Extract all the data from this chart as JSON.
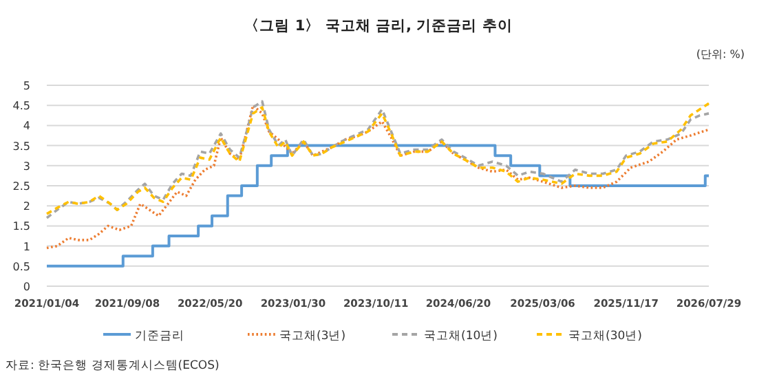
{
  "chart_data": {
    "type": "line",
    "title": "〈그림 1〉 국고채 금리, 기준금리 추이",
    "annotations": [
      "(단위: %)",
      "자료: 한국은행 경제통계시스템(ECOS)"
    ],
    "xlim": [
      "2021-01-04",
      "2026-07-29"
    ],
    "xticks": [
      {
        "value": "2021-01-04",
        "label": "2021/01/04"
      },
      {
        "value": "2021-09-08",
        "label": "2021/09/08"
      },
      {
        "value": "2022-05-20",
        "label": "2022/05/20"
      },
      {
        "value": "2023-01-30",
        "label": "2023/01/30"
      },
      {
        "value": "2023-10-11",
        "label": "2023/10/11"
      },
      {
        "value": "2024-06-20",
        "label": "2024/06/20"
      },
      {
        "value": "2025-03-06",
        "label": "2025/03/06"
      },
      {
        "value": "2025-11-17",
        "label": "2025/11/17"
      },
      {
        "value": "2026-07-29",
        "label": "2026/07/29"
      }
    ],
    "ylim": [
      0,
      5
    ],
    "yticks": [
      0,
      0.5,
      1,
      1.5,
      2,
      2.5,
      3,
      3.5,
      4,
      4.5,
      5
    ],
    "grid": "y",
    "legend": "bottom",
    "series": [
      {
        "name": "기준금리",
        "type": "step",
        "color": "#5b9bd5",
        "line_style": "solid",
        "x": [
          "2021-01-04",
          "2021-08-26",
          "2021-11-25",
          "2022-01-14",
          "2022-04-14",
          "2022-05-26",
          "2022-07-13",
          "2022-08-25",
          "2022-10-12",
          "2022-11-24",
          "2023-01-13",
          "2024-10-11",
          "2024-11-28",
          "2025-02-25",
          "2025-05-29",
          "2026-07-18",
          "2026-07-29"
        ],
        "values": [
          0.5,
          0.75,
          1.0,
          1.25,
          1.5,
          1.75,
          2.25,
          2.5,
          3.0,
          3.25,
          3.5,
          3.25,
          3.0,
          2.75,
          2.5,
          2.75,
          2.75
        ]
      },
      {
        "name": "국고채(3년)",
        "color": "#ed7d31",
        "line_style": "dotted",
        "x": [
          "2021-01-04",
          "2021-02-05",
          "2021-03-12",
          "2021-04-10",
          "2021-05-15",
          "2021-06-13",
          "2021-07-11",
          "2021-08-15",
          "2021-09-20",
          "2021-10-18",
          "2021-11-15",
          "2021-12-13",
          "2022-01-11",
          "2022-02-08",
          "2022-03-08",
          "2022-04-05",
          "2022-05-04",
          "2022-06-01",
          "2022-06-22",
          "2022-07-20",
          "2022-08-18",
          "2022-09-08",
          "2022-09-29",
          "2022-10-27",
          "2022-11-17",
          "2022-12-16",
          "2023-01-27",
          "2023-03-03",
          "2023-04-01",
          "2023-05-27",
          "2023-07-09",
          "2023-08-20",
          "2023-09-17",
          "2023-10-30",
          "2023-11-27",
          "2023-12-25",
          "2024-02-06",
          "2024-03-19",
          "2024-04-30",
          "2024-06-05",
          "2024-07-10",
          "2024-08-21",
          "2024-10-03",
          "2024-11-14",
          "2024-12-20",
          "2025-01-24",
          "2025-03-07",
          "2025-05-03",
          "2025-06-14",
          "2025-07-27",
          "2025-09-07",
          "2025-10-19",
          "2025-12-01",
          "2026-01-26",
          "2026-03-10",
          "2026-04-21",
          "2026-06-03",
          "2026-07-29"
        ],
        "values": [
          0.95,
          1.0,
          1.2,
          1.15,
          1.15,
          1.3,
          1.5,
          1.4,
          1.5,
          2.05,
          1.9,
          1.75,
          2.05,
          2.35,
          2.25,
          2.65,
          2.9,
          3.0,
          3.7,
          3.3,
          3.15,
          3.8,
          4.5,
          4.3,
          3.85,
          3.65,
          3.3,
          3.6,
          3.25,
          3.45,
          3.65,
          3.75,
          3.85,
          4.1,
          3.7,
          3.25,
          3.35,
          3.35,
          3.6,
          3.3,
          3.15,
          2.95,
          2.85,
          2.9,
          2.65,
          2.7,
          2.6,
          2.45,
          2.5,
          2.45,
          2.45,
          2.6,
          2.95,
          3.1,
          3.35,
          3.65,
          3.75,
          3.9
        ]
      },
      {
        "name": "국고채(10년)",
        "color": "#a5a5a5",
        "line_style": "dashed",
        "x": [
          "2021-01-04",
          "2021-02-05",
          "2021-03-12",
          "2021-04-10",
          "2021-05-15",
          "2021-06-13",
          "2021-07-18",
          "2021-08-08",
          "2021-09-05",
          "2021-10-11",
          "2021-11-01",
          "2021-11-29",
          "2021-12-27",
          "2022-01-25",
          "2022-02-22",
          "2022-03-22",
          "2022-04-20",
          "2022-05-18",
          "2022-06-22",
          "2022-07-20",
          "2022-08-18",
          "2022-09-08",
          "2022-09-29",
          "2022-10-27",
          "2022-11-17",
          "2022-12-16",
          "2023-01-06",
          "2023-01-27",
          "2023-03-03",
          "2023-04-01",
          "2023-04-29",
          "2023-05-27",
          "2023-07-09",
          "2023-08-20",
          "2023-09-17",
          "2023-10-30",
          "2023-11-27",
          "2023-12-25",
          "2024-02-06",
          "2024-03-19",
          "2024-04-30",
          "2024-06-05",
          "2024-07-10",
          "2024-08-21",
          "2024-10-03",
          "2024-11-14",
          "2024-12-20",
          "2025-01-24",
          "2025-03-07",
          "2025-05-03",
          "2025-06-14",
          "2025-07-27",
          "2025-09-07",
          "2025-10-19",
          "2025-11-17",
          "2025-12-29",
          "2026-02-09",
          "2026-03-24",
          "2026-05-05",
          "2026-06-03",
          "2026-07-01",
          "2026-07-29"
        ],
        "values": [
          1.7,
          1.9,
          2.1,
          2.05,
          2.1,
          2.2,
          2.05,
          1.9,
          2.1,
          2.4,
          2.55,
          2.25,
          2.15,
          2.55,
          2.8,
          2.75,
          3.35,
          3.3,
          3.8,
          3.4,
          3.2,
          3.8,
          4.45,
          4.6,
          3.9,
          3.5,
          3.65,
          3.25,
          3.65,
          3.25,
          3.3,
          3.45,
          3.65,
          3.8,
          3.9,
          4.4,
          3.85,
          3.3,
          3.4,
          3.4,
          3.65,
          3.35,
          3.2,
          3.0,
          3.1,
          3.0,
          2.75,
          2.85,
          2.8,
          2.6,
          2.9,
          2.8,
          2.8,
          2.9,
          3.25,
          3.35,
          3.6,
          3.65,
          3.8,
          4.15,
          4.25,
          4.3
        ]
      },
      {
        "name": "국고채(30년)",
        "color": "#ffc000",
        "line_style": "dashed",
        "x": [
          "2021-01-04",
          "2021-02-05",
          "2021-03-12",
          "2021-04-10",
          "2021-05-15",
          "2021-06-13",
          "2021-07-18",
          "2021-08-08",
          "2021-09-05",
          "2021-10-11",
          "2021-11-01",
          "2021-11-29",
          "2021-12-27",
          "2022-01-25",
          "2022-02-22",
          "2022-03-22",
          "2022-04-20",
          "2022-05-18",
          "2022-06-22",
          "2022-07-20",
          "2022-08-18",
          "2022-09-08",
          "2022-09-29",
          "2022-10-27",
          "2022-11-17",
          "2022-12-16",
          "2023-01-06",
          "2023-01-27",
          "2023-03-03",
          "2023-04-01",
          "2023-04-29",
          "2023-05-27",
          "2023-07-09",
          "2023-08-20",
          "2023-09-17",
          "2023-10-30",
          "2023-11-27",
          "2023-12-25",
          "2024-02-06",
          "2024-03-19",
          "2024-04-30",
          "2024-06-05",
          "2024-07-10",
          "2024-08-21",
          "2024-10-03",
          "2024-11-14",
          "2024-12-20",
          "2025-01-24",
          "2025-03-07",
          "2025-05-03",
          "2025-06-14",
          "2025-07-27",
          "2025-09-07",
          "2025-10-19",
          "2025-11-17",
          "2025-12-29",
          "2026-02-09",
          "2026-03-24",
          "2026-05-05",
          "2026-06-03",
          "2026-07-01",
          "2026-07-29"
        ],
        "values": [
          1.8,
          1.95,
          2.1,
          2.05,
          2.1,
          2.25,
          2.05,
          1.9,
          2.05,
          2.35,
          2.45,
          2.2,
          2.1,
          2.45,
          2.7,
          2.65,
          3.2,
          3.15,
          3.7,
          3.3,
          3.1,
          3.7,
          4.3,
          4.45,
          3.85,
          3.45,
          3.6,
          3.25,
          3.6,
          3.25,
          3.3,
          3.45,
          3.6,
          3.75,
          3.85,
          4.3,
          3.8,
          3.25,
          3.35,
          3.35,
          3.6,
          3.3,
          3.15,
          2.95,
          2.95,
          2.85,
          2.6,
          2.7,
          2.65,
          2.55,
          2.8,
          2.75,
          2.75,
          2.85,
          3.2,
          3.3,
          3.55,
          3.6,
          3.9,
          4.25,
          4.4,
          4.55
        ]
      }
    ]
  }
}
